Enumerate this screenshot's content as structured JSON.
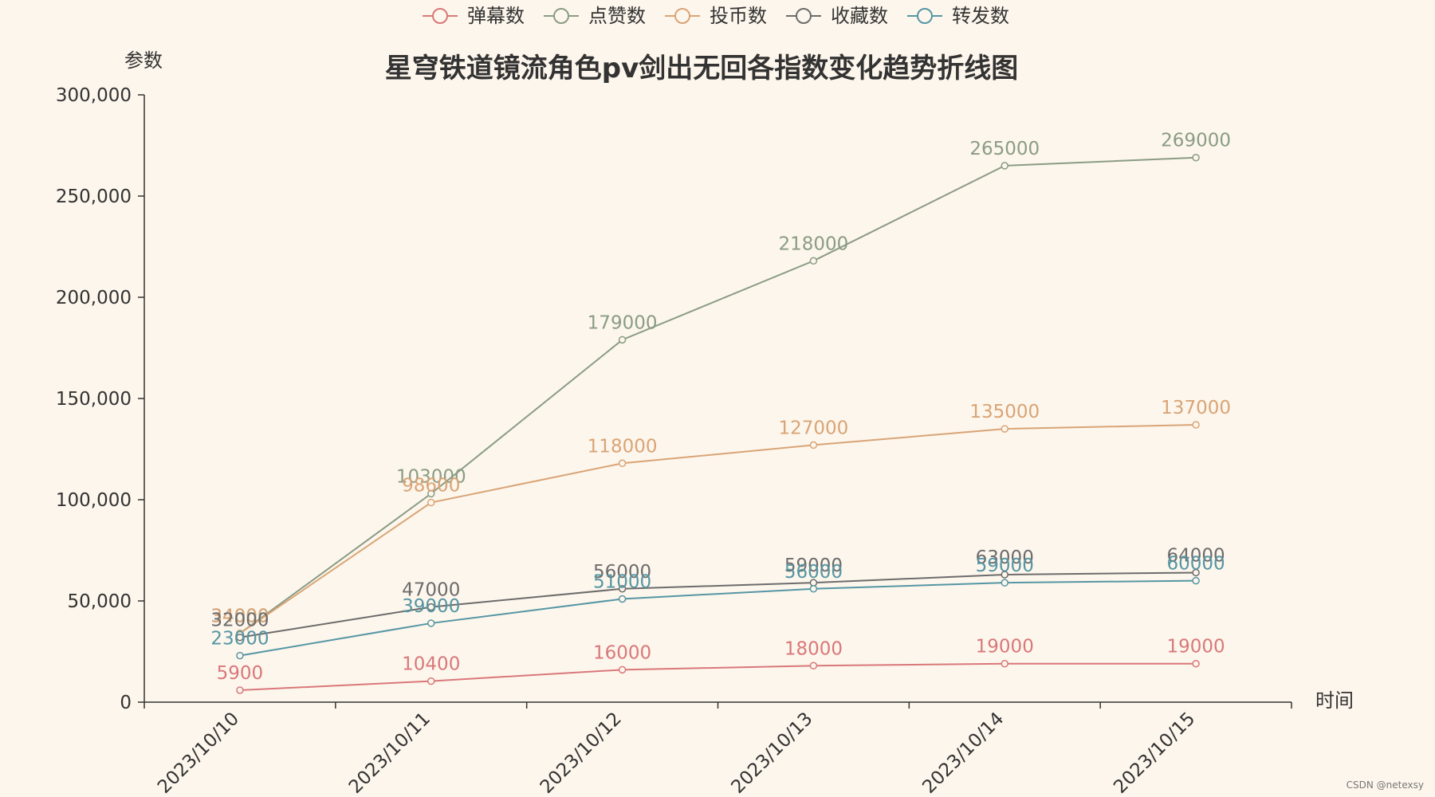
{
  "chart_data": {
    "type": "line",
    "title": "星穹铁道镜流角色pv剑出无回各指数变化趋势折线图",
    "xlabel": "时间",
    "ylabel": "参数",
    "ylim": [
      0,
      300000
    ],
    "yticks": [
      0,
      50000,
      100000,
      150000,
      200000,
      250000,
      300000
    ],
    "ytick_labels": [
      "0",
      "50,000",
      "100,000",
      "150,000",
      "200,000",
      "250,000",
      "300,000"
    ],
    "grid": false,
    "legend_position": "top",
    "categories": [
      "2023/10/10",
      "2023/10/11",
      "2023/10/12",
      "2023/10/13",
      "2023/10/14",
      "2023/10/15"
    ],
    "series": [
      {
        "name": "弹幕数",
        "color": "#d9787a",
        "values": [
          5900,
          10400,
          16000,
          18000,
          19000,
          19000
        ]
      },
      {
        "name": "点赞数",
        "color": "#8a9c84",
        "values": [
          34000,
          103000,
          179000,
          218000,
          265000,
          269000
        ]
      },
      {
        "name": "投币数",
        "color": "#d9a476",
        "values": [
          34000,
          98600,
          118000,
          127000,
          135000,
          137000
        ]
      },
      {
        "name": "收藏数",
        "color": "#6c6c6c",
        "values": [
          32000,
          47000,
          56000,
          59000,
          63000,
          64000
        ]
      },
      {
        "name": "转发数",
        "color": "#5596a4",
        "values": [
          23000,
          39000,
          51000,
          56000,
          59000,
          60000
        ]
      }
    ]
  },
  "watermark": "CSDN @netexsy"
}
